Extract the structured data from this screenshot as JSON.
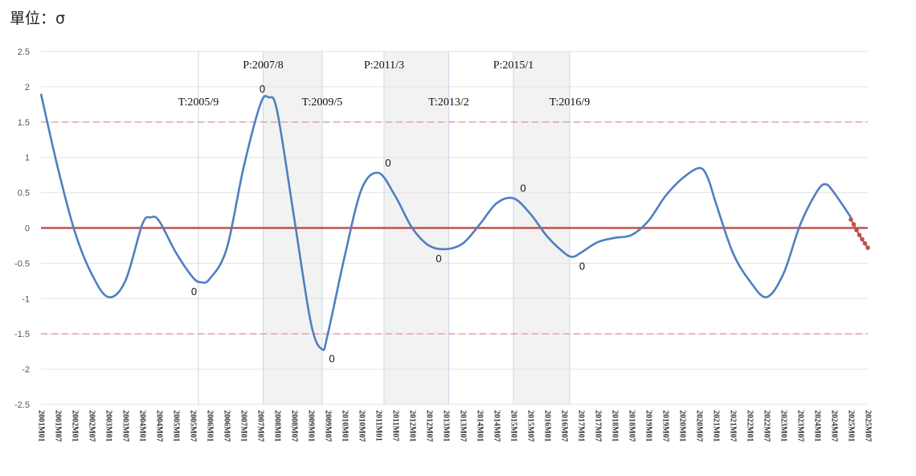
{
  "unit_label": "單位：σ",
  "chart_data": {
    "type": "line",
    "ylim": [
      -2.5,
      2.5
    ],
    "yticks": [
      "2.5",
      "2",
      "1.5",
      "1",
      "0.5",
      "0",
      "-0.5",
      "-1",
      "-1.5",
      "-2",
      "-2.5"
    ],
    "x_start": "2001M01",
    "x_end": "2025M07",
    "x_tick_labels": [
      "2001M01",
      "2001M07",
      "2002M01",
      "2002M07",
      "2003M01",
      "2003M07",
      "2004M01",
      "2004M07",
      "2005M01",
      "2005M07",
      "2006M01",
      "2006M07",
      "2007M01",
      "2007M07",
      "2008M01",
      "2008M07",
      "2009M01",
      "2009M07",
      "2010M01",
      "2010M07",
      "2011M01",
      "2011M07",
      "2012M01",
      "2012M07",
      "2013M01",
      "2013M07",
      "2014M01",
      "2014M07",
      "2015M01",
      "2015M07",
      "2016M01",
      "2016M07",
      "2017M01",
      "2017M07",
      "2018M01",
      "2018M07",
      "2019M01",
      "2019M07",
      "2020M01",
      "2020M07",
      "2021M01",
      "2021M07",
      "2022M01",
      "2022M07",
      "2023M01",
      "2023M07",
      "2024M01",
      "2024M07",
      "2025M01",
      "2025M07"
    ],
    "series": [
      {
        "color": "#4f7fbf",
        "style": "solid",
        "points": [
          [
            "2001M01",
            1.9
          ],
          [
            "2001M07",
            0.85
          ],
          [
            "2002M01",
            -0.05
          ],
          [
            "2002M07",
            -0.65
          ],
          [
            "2003M01",
            -0.98
          ],
          [
            "2003M07",
            -0.75
          ],
          [
            "2004M01",
            0.05
          ],
          [
            "2004M04",
            0.15
          ],
          [
            "2004M07",
            0.1
          ],
          [
            "2005M01",
            -0.35
          ],
          [
            "2005M07",
            -0.7
          ],
          [
            "2005M10",
            -0.77
          ],
          [
            "2006M01",
            -0.72
          ],
          [
            "2006M07",
            -0.3
          ],
          [
            "2007M01",
            0.85
          ],
          [
            "2007M07",
            1.75
          ],
          [
            "2007M10",
            1.85
          ],
          [
            "2008M01",
            1.65
          ],
          [
            "2008M07",
            0.15
          ],
          [
            "2009M01",
            -1.35
          ],
          [
            "2009M05",
            -1.72
          ],
          [
            "2009M07",
            -1.5
          ],
          [
            "2010M01",
            -0.4
          ],
          [
            "2010M07",
            0.55
          ],
          [
            "2011M01",
            0.78
          ],
          [
            "2011M07",
            0.45
          ],
          [
            "2012M01",
            0.0
          ],
          [
            "2012M07",
            -0.25
          ],
          [
            "2013M01",
            -0.3
          ],
          [
            "2013M07",
            -0.22
          ],
          [
            "2014M01",
            0.05
          ],
          [
            "2014M07",
            0.35
          ],
          [
            "2015M01",
            0.42
          ],
          [
            "2015M07",
            0.2
          ],
          [
            "2016M01",
            -0.12
          ],
          [
            "2016M07",
            -0.35
          ],
          [
            "2016M10",
            -0.41
          ],
          [
            "2017M01",
            -0.35
          ],
          [
            "2017M07",
            -0.2
          ],
          [
            "2018M01",
            -0.14
          ],
          [
            "2018M07",
            -0.1
          ],
          [
            "2019M01",
            0.1
          ],
          [
            "2019M07",
            0.45
          ],
          [
            "2020M01",
            0.7
          ],
          [
            "2020M07",
            0.85
          ],
          [
            "2020M10",
            0.72
          ],
          [
            "2021M01",
            0.35
          ],
          [
            "2021M07",
            -0.35
          ],
          [
            "2022M01",
            -0.75
          ],
          [
            "2022M07",
            -0.98
          ],
          [
            "2023M01",
            -0.65
          ],
          [
            "2023M07",
            0.05
          ],
          [
            "2024M01",
            0.52
          ],
          [
            "2024M04",
            0.62
          ],
          [
            "2024M07",
            0.5
          ],
          [
            "2025M01",
            0.15
          ]
        ]
      },
      {
        "color": "#c0504d",
        "style": "dotted",
        "points": [
          [
            "2025M01",
            0.12
          ],
          [
            "2025M02",
            0.05
          ],
          [
            "2025M03",
            -0.03
          ],
          [
            "2025M04",
            -0.1
          ],
          [
            "2025M05",
            -0.16
          ],
          [
            "2025M06",
            -0.22
          ],
          [
            "2025M07",
            -0.28
          ]
        ]
      }
    ],
    "reference_lines": [
      {
        "y": 0,
        "color": "#c0504d",
        "style": "solid"
      },
      {
        "y": 1.5,
        "color": "#e6a0a0",
        "style": "dashed"
      },
      {
        "y": -1.5,
        "color": "#e6a0a0",
        "style": "dashed"
      }
    ],
    "shaded_periods": [
      {
        "from": "2007M08",
        "to": "2009M05"
      },
      {
        "from": "2011M03",
        "to": "2013M02"
      },
      {
        "from": "2015M01",
        "to": "2016M09"
      }
    ],
    "turning_points": [
      {
        "label": "T:2005/9",
        "date": "2005M09",
        "pos": "low"
      },
      {
        "label": "P:2007/8",
        "date": "2007M08",
        "pos": "high"
      },
      {
        "label": "T:2009/5",
        "date": "2009M05",
        "pos": "low"
      },
      {
        "label": "P:2011/3",
        "date": "2011M03",
        "pos": "high"
      },
      {
        "label": "T:2013/2",
        "date": "2013M02",
        "pos": "low"
      },
      {
        "label": "P:2015/1",
        "date": "2015M01",
        "pos": "high"
      },
      {
        "label": "T:2016/9",
        "date": "2016M09",
        "pos": "low"
      }
    ],
    "data_labels": [
      {
        "text": "0",
        "date": "2005M10",
        "y": -0.77,
        "place": "below-left"
      },
      {
        "text": "0",
        "date": "2007M10",
        "y": 1.85,
        "place": "above-left"
      },
      {
        "text": "0",
        "date": "2009M05",
        "y": -1.72,
        "place": "below-right"
      },
      {
        "text": "0",
        "date": "2011M01",
        "y": 0.78,
        "place": "above-right"
      },
      {
        "text": "0",
        "date": "2013M01",
        "y": -0.3,
        "place": "below-left"
      },
      {
        "text": "0",
        "date": "2015M01",
        "y": 0.42,
        "place": "above-right"
      },
      {
        "text": "0",
        "date": "2016M10",
        "y": -0.41,
        "place": "below-right"
      }
    ]
  }
}
